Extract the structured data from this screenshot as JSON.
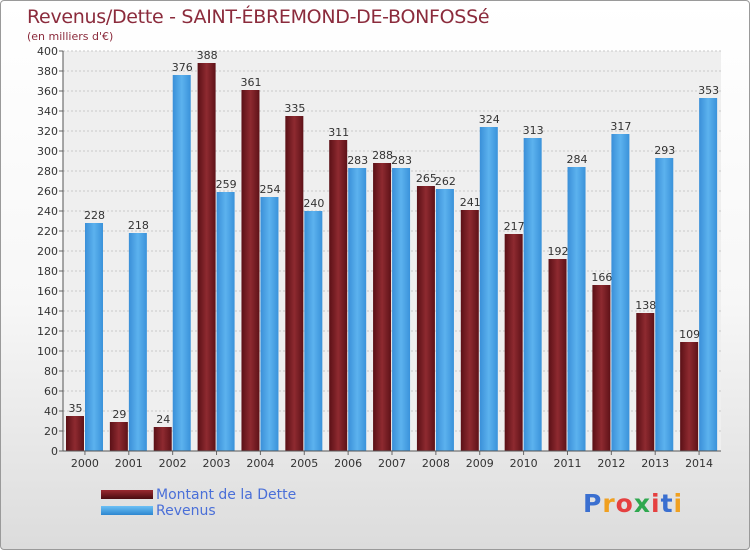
{
  "header": {
    "title": "Revenus/Dette - SAINT-ÉBREMOND-DE-BONFOSSé",
    "subtitle": "(en milliers d'€)"
  },
  "chart_data": {
    "type": "bar",
    "title": "Revenus/Dette - SAINT-ÉBREMOND-DE-BONFOSSé",
    "subtitle": "(en milliers d'€)",
    "categories": [
      "2000",
      "2001",
      "2002",
      "2003",
      "2004",
      "2005",
      "2006",
      "2007",
      "2008",
      "2009",
      "2010",
      "2011",
      "2012",
      "2013",
      "2014"
    ],
    "series": [
      {
        "name": "Montant de la Dette",
        "color": "#7a1e24",
        "values": [
          35,
          29,
          24,
          388,
          361,
          335,
          311,
          288,
          265,
          241,
          217,
          192,
          166,
          138,
          109
        ]
      },
      {
        "name": "Revenus",
        "color": "#4aa3e6",
        "values": [
          228,
          218,
          376,
          259,
          254,
          240,
          283,
          283,
          262,
          324,
          313,
          284,
          317,
          293,
          353
        ]
      }
    ],
    "ylim": [
      0,
      400
    ],
    "yticks": [
      "0",
      "20",
      "40",
      "60",
      "80",
      "100",
      "120",
      "140",
      "160",
      "180",
      "200",
      "220",
      "240",
      "260",
      "280",
      "300",
      "320",
      "340",
      "360",
      "380",
      "400"
    ],
    "grid": true,
    "legend": "bottom-left"
  },
  "legend": {
    "debt_label": "Montant de la Dette",
    "revenue_label": "Revenus"
  },
  "logo": {
    "letters": [
      "P",
      "r",
      "o",
      "x",
      "i",
      "t",
      "i"
    ],
    "colors": [
      "#3a6fd0",
      "#f0a020",
      "#e54040",
      "#2fa84f",
      "#e54040",
      "#3a6fd0",
      "#f0a020"
    ]
  }
}
